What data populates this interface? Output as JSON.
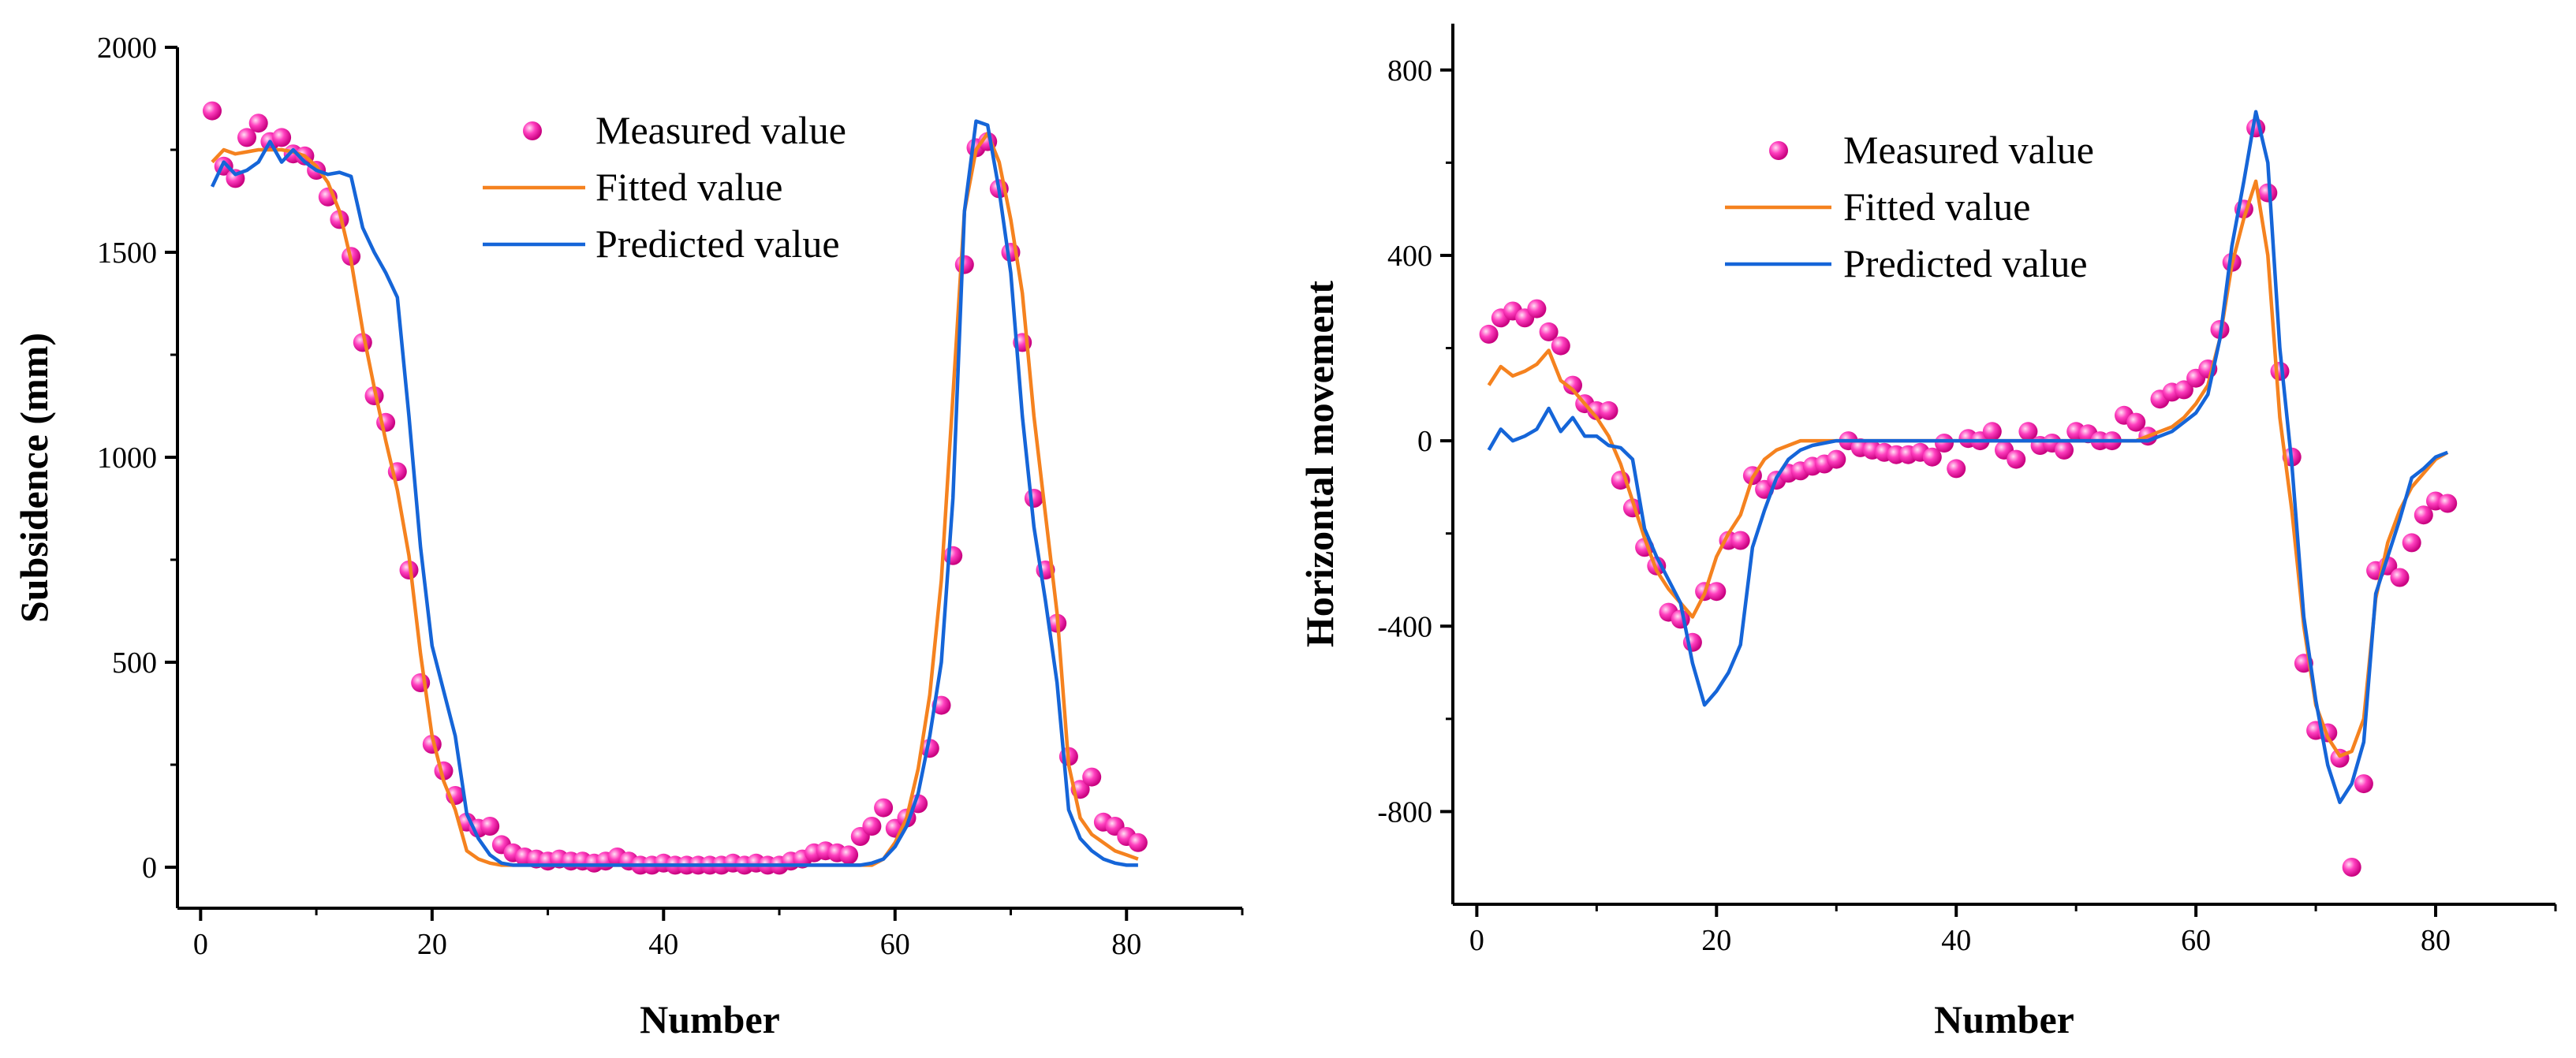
{
  "colors": {
    "measured": "#ff3fbf",
    "fitted": "#f5821f",
    "predicted": "#1565d8",
    "axis": "#000000"
  },
  "chart_data": [
    {
      "type": "line",
      "name": "subsidence",
      "title": "",
      "xlabel": "Number",
      "ylabel": "Subsidence (mm)",
      "xlim": [
        -2,
        90
      ],
      "ylim": [
        -100,
        2000
      ],
      "xticks": [
        0,
        20,
        40,
        60,
        80
      ],
      "yticks": [
        0,
        500,
        1000,
        1500,
        2000
      ],
      "xtick_labels": [
        "0",
        "20",
        "40",
        "60",
        "80"
      ],
      "ytick_labels": [
        "0",
        "500",
        "1000",
        "1500",
        "2000"
      ],
      "legend_position": "top-center",
      "legend": [
        "Measured value",
        "Fitted value",
        "Predicted value"
      ],
      "x": [
        1,
        2,
        3,
        4,
        5,
        6,
        7,
        8,
        9,
        10,
        11,
        12,
        13,
        14,
        15,
        16,
        17,
        18,
        19,
        20,
        21,
        22,
        23,
        24,
        25,
        26,
        27,
        28,
        29,
        30,
        31,
        32,
        33,
        34,
        35,
        36,
        37,
        38,
        39,
        40,
        41,
        42,
        43,
        44,
        45,
        46,
        47,
        48,
        49,
        50,
        51,
        52,
        53,
        54,
        55,
        56,
        57,
        58,
        59,
        60,
        61,
        62,
        63,
        64,
        65,
        66,
        67,
        68,
        69,
        70,
        71,
        72,
        73,
        74,
        75,
        76,
        77,
        78,
        79,
        80,
        81
      ],
      "series": [
        {
          "name": "Measured value",
          "style": "markers",
          "values": [
            1845,
            1710,
            1680,
            1780,
            1815,
            1770,
            1780,
            1740,
            1735,
            1700,
            1635,
            1580,
            1490,
            1280,
            1150,
            1085,
            965,
            725,
            450,
            300,
            235,
            175,
            110,
            95,
            100,
            55,
            35,
            25,
            20,
            15,
            20,
            15,
            15,
            10,
            15,
            25,
            15,
            5,
            5,
            10,
            5,
            5,
            5,
            5,
            5,
            10,
            5,
            10,
            5,
            5,
            15,
            20,
            35,
            40,
            35,
            30,
            75,
            100,
            145,
            95,
            120,
            155,
            290,
            395,
            760,
            1470,
            1755,
            1770,
            1655,
            1500,
            1280,
            900,
            725,
            595,
            270,
            190,
            220,
            110,
            100,
            75,
            60
          ]
        },
        {
          "name": "Fitted value",
          "style": "line",
          "values": [
            1720,
            1750,
            1740,
            1745,
            1750,
            1750,
            1750,
            1745,
            1735,
            1710,
            1670,
            1600,
            1480,
            1310,
            1170,
            1040,
            920,
            760,
            520,
            320,
            210,
            140,
            40,
            20,
            10,
            5,
            5,
            5,
            5,
            5,
            5,
            5,
            5,
            5,
            5,
            5,
            5,
            5,
            5,
            5,
            5,
            5,
            5,
            5,
            5,
            5,
            5,
            5,
            5,
            5,
            5,
            5,
            5,
            5,
            5,
            5,
            5,
            5,
            20,
            60,
            120,
            240,
            420,
            700,
            1150,
            1600,
            1750,
            1790,
            1720,
            1580,
            1400,
            1100,
            860,
            620,
            250,
            120,
            80,
            60,
            40,
            30,
            20
          ]
        },
        {
          "name": "Predicted value",
          "style": "line",
          "values": [
            1660,
            1720,
            1690,
            1700,
            1720,
            1770,
            1720,
            1750,
            1720,
            1700,
            1690,
            1695,
            1685,
            1560,
            1500,
            1450,
            1390,
            1100,
            780,
            540,
            430,
            320,
            130,
            70,
            30,
            10,
            5,
            5,
            5,
            5,
            5,
            5,
            5,
            5,
            5,
            5,
            5,
            5,
            5,
            5,
            5,
            5,
            5,
            5,
            5,
            5,
            5,
            5,
            5,
            5,
            5,
            5,
            5,
            5,
            5,
            5,
            5,
            10,
            20,
            50,
            100,
            180,
            320,
            500,
            900,
            1600,
            1820,
            1810,
            1650,
            1450,
            1100,
            830,
            650,
            450,
            140,
            70,
            40,
            20,
            10,
            5,
            5
          ]
        }
      ]
    },
    {
      "type": "line",
      "name": "horizontal",
      "title": "",
      "xlabel": "Number",
      "ylabel": "Horizontal movement",
      "xlim": [
        -2,
        90
      ],
      "ylim": [
        -1000,
        900
      ],
      "xticks": [
        0,
        20,
        40,
        60,
        80
      ],
      "yticks": [
        -800,
        -400,
        0,
        400,
        800
      ],
      "xtick_labels": [
        "0",
        "20",
        "40",
        "60",
        "80"
      ],
      "ytick_labels": [
        "-800",
        "-400",
        "0",
        "400",
        "800"
      ],
      "legend_position": "top-left",
      "legend": [
        "Measured value",
        "Fitted value",
        "Predicted value"
      ],
      "x": [
        1,
        2,
        3,
        4,
        5,
        6,
        7,
        8,
        9,
        10,
        11,
        12,
        13,
        14,
        15,
        16,
        17,
        18,
        19,
        20,
        21,
        22,
        23,
        24,
        25,
        26,
        27,
        28,
        29,
        30,
        31,
        32,
        33,
        34,
        35,
        36,
        37,
        38,
        39,
        40,
        41,
        42,
        43,
        44,
        45,
        46,
        47,
        48,
        49,
        50,
        51,
        52,
        53,
        54,
        55,
        56,
        57,
        58,
        59,
        60,
        61,
        62,
        63,
        64,
        65,
        66,
        67,
        68,
        69,
        70,
        71,
        72,
        73,
        74,
        75,
        76,
        77,
        78,
        79,
        80,
        81
      ],
      "series": [
        {
          "name": "Measured value",
          "style": "markers",
          "values": [
            230,
            265,
            280,
            265,
            285,
            235,
            205,
            120,
            80,
            65,
            65,
            -85,
            -145,
            -230,
            -270,
            -370,
            -385,
            -435,
            -325,
            -325,
            -215,
            -215,
            -75,
            -105,
            -85,
            -70,
            -65,
            -55,
            -50,
            -40,
            0,
            -15,
            -20,
            -25,
            -30,
            -30,
            -25,
            -35,
            -5,
            -60,
            5,
            0,
            20,
            -20,
            -40,
            20,
            -10,
            -5,
            -20,
            20,
            15,
            0,
            0,
            55,
            40,
            10,
            90,
            105,
            110,
            135,
            155,
            240,
            385,
            500,
            675,
            535,
            150,
            -35,
            -480,
            -625,
            -630,
            -685,
            -920,
            -740,
            -280,
            -270,
            -295,
            -220,
            -160,
            -130,
            -135
          ]
        },
        {
          "name": "Fitted value",
          "style": "line",
          "values": [
            120,
            160,
            140,
            150,
            165,
            195,
            130,
            110,
            80,
            50,
            10,
            -50,
            -130,
            -210,
            -280,
            -320,
            -350,
            -380,
            -330,
            -250,
            -200,
            -160,
            -80,
            -40,
            -20,
            -10,
            0,
            0,
            0,
            0,
            0,
            0,
            0,
            0,
            0,
            0,
            0,
            0,
            0,
            0,
            0,
            0,
            0,
            0,
            0,
            0,
            0,
            0,
            0,
            0,
            0,
            0,
            0,
            0,
            0,
            10,
            20,
            30,
            50,
            80,
            120,
            220,
            380,
            480,
            560,
            400,
            50,
            -150,
            -400,
            -570,
            -640,
            -680,
            -670,
            -600,
            -340,
            -220,
            -150,
            -100,
            -70,
            -40,
            -25
          ]
        },
        {
          "name": "Predicted value",
          "style": "line",
          "values": [
            -20,
            25,
            0,
            10,
            25,
            70,
            20,
            50,
            10,
            10,
            -10,
            -15,
            -40,
            -190,
            -250,
            -300,
            -350,
            -480,
            -570,
            -540,
            -500,
            -440,
            -230,
            -150,
            -80,
            -40,
            -20,
            -10,
            -5,
            0,
            0,
            0,
            0,
            0,
            0,
            0,
            0,
            0,
            0,
            0,
            0,
            0,
            0,
            0,
            0,
            0,
            0,
            0,
            0,
            0,
            0,
            0,
            0,
            0,
            0,
            0,
            10,
            20,
            40,
            60,
            100,
            220,
            420,
            560,
            710,
            600,
            200,
            -50,
            -380,
            -560,
            -700,
            -780,
            -740,
            -650,
            -330,
            -250,
            -170,
            -80,
            -60,
            -35,
            -25
          ]
        }
      ]
    }
  ]
}
